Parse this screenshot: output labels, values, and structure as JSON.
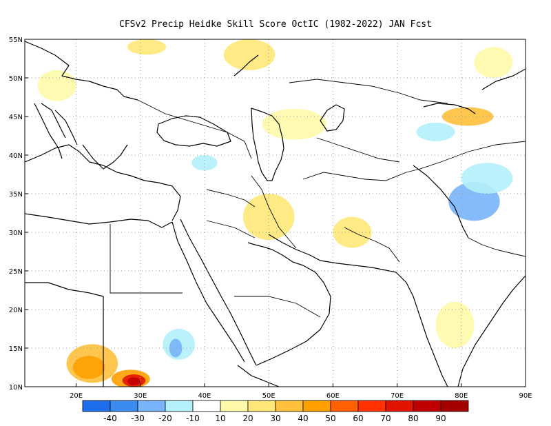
{
  "title": "CFSv2 Precip Heidke Skill Score OctIC (1982-2022) JAN Fcst",
  "lon_range": [
    12,
    90
  ],
  "lat_range": [
    10,
    55
  ],
  "x_ticks": [
    {
      "value": 20,
      "label": "20E"
    },
    {
      "value": 30,
      "label": "30E"
    },
    {
      "value": 40,
      "label": "40E"
    },
    {
      "value": 50,
      "label": "50E"
    },
    {
      "value": 60,
      "label": "60E"
    },
    {
      "value": 70,
      "label": "70E"
    },
    {
      "value": 80,
      "label": "80E"
    },
    {
      "value": 90,
      "label": "90E"
    }
  ],
  "y_ticks": [
    {
      "value": 10,
      "label": "10N"
    },
    {
      "value": 15,
      "label": "15N"
    },
    {
      "value": 20,
      "label": "20N"
    },
    {
      "value": 25,
      "label": "25N"
    },
    {
      "value": 30,
      "label": "30N"
    },
    {
      "value": 35,
      "label": "35N"
    },
    {
      "value": 40,
      "label": "40N"
    },
    {
      "value": 45,
      "label": "45N"
    },
    {
      "value": 50,
      "label": "50N"
    },
    {
      "value": 55,
      "label": "55N"
    }
  ],
  "colorbar": {
    "colors": [
      "#1e6eeb",
      "#3c8cf0",
      "#78b4fa",
      "#b4f0fa",
      "#ffffff",
      "#fffaaa",
      "#ffe878",
      "#ffc03c",
      "#ffa000",
      "#ff6000",
      "#ff3200",
      "#e11400",
      "#c00000",
      "#a50000"
    ],
    "labels": [
      "-40",
      "-30",
      "-20",
      "-10",
      "10",
      "20",
      "30",
      "40",
      "50",
      "60",
      "70",
      "80",
      "90"
    ]
  },
  "skill_patches": [
    {
      "lon": 22.5,
      "lat": 13,
      "rx": 4,
      "ry": 2.5,
      "color": "#ffc03c"
    },
    {
      "lon": 22,
      "lat": 12.5,
      "rx": 2.5,
      "ry": 1.5,
      "color": "#ffa000"
    },
    {
      "lon": 28.5,
      "lat": 11,
      "rx": 3,
      "ry": 1.2,
      "color": "#ffa000"
    },
    {
      "lon": 29,
      "lat": 10.8,
      "rx": 1.8,
      "ry": 0.8,
      "color": "#e11400"
    },
    {
      "lon": 29,
      "lat": 10.7,
      "rx": 1,
      "ry": 0.5,
      "color": "#c00000"
    },
    {
      "lon": 36,
      "lat": 15.5,
      "rx": 2.5,
      "ry": 2,
      "color": "#b4f0fa"
    },
    {
      "lon": 35.5,
      "lat": 15,
      "rx": 1,
      "ry": 1.2,
      "color": "#78b4fa"
    },
    {
      "lon": 47,
      "lat": 53,
      "rx": 4,
      "ry": 2,
      "color": "#ffe878"
    },
    {
      "lon": 31,
      "lat": 54,
      "rx": 3,
      "ry": 1,
      "color": "#ffe878"
    },
    {
      "lon": 85,
      "lat": 52,
      "rx": 3,
      "ry": 2,
      "color": "#fffaaa"
    },
    {
      "lon": 50,
      "lat": 32,
      "rx": 4,
      "ry": 3,
      "color": "#ffe878"
    },
    {
      "lon": 82,
      "lat": 34,
      "rx": 4,
      "ry": 2.5,
      "color": "#78b4fa"
    },
    {
      "lon": 84,
      "lat": 37,
      "rx": 4,
      "ry": 2,
      "color": "#b4f0fa"
    },
    {
      "lon": 76,
      "lat": 43,
      "rx": 3,
      "ry": 1.2,
      "color": "#b4f0fa"
    },
    {
      "lon": 81,
      "lat": 45,
      "rx": 4,
      "ry": 1.2,
      "color": "#ffc03c"
    },
    {
      "lon": 63,
      "lat": 30,
      "rx": 3,
      "ry": 2,
      "color": "#ffe878"
    },
    {
      "lon": 79,
      "lat": 18,
      "rx": 3,
      "ry": 3,
      "color": "#fffaaa"
    },
    {
      "lon": 54,
      "lat": 44,
      "rx": 5,
      "ry": 2,
      "color": "#fffaaa"
    },
    {
      "lon": 17,
      "lat": 49,
      "rx": 3,
      "ry": 2,
      "color": "#fffaaa"
    },
    {
      "lon": 40,
      "lat": 39,
      "rx": 2,
      "ry": 1,
      "color": "#b4f0fa"
    }
  ]
}
